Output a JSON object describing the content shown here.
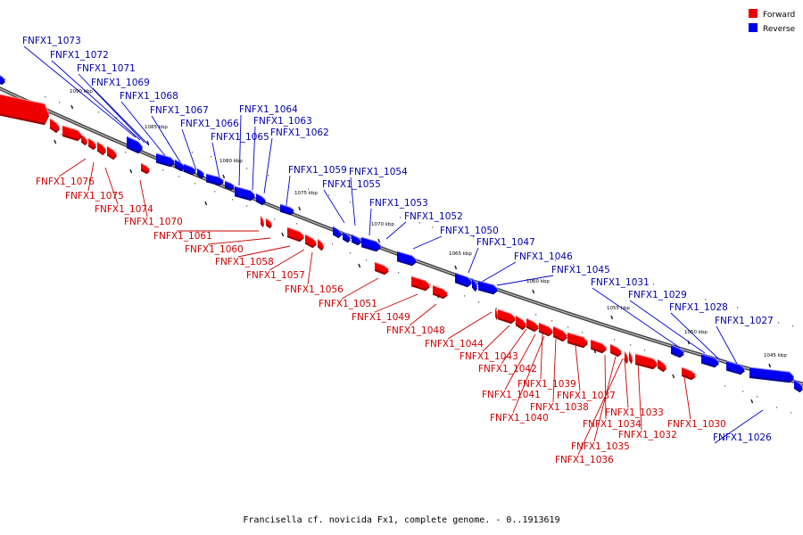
{
  "caption": "Francisella cf. novicida Fx1, complete genome. - 0..1913619",
  "legend": [
    {
      "label": "Forward",
      "color": "#ee0000"
    },
    {
      "label": "Reverse",
      "color": "#0000ee"
    }
  ],
  "kbp_labels": [
    "1090 kbp",
    "1085 kbp",
    "1080 kbp",
    "1075 kbp",
    "1070 kbp",
    "1065 kbp",
    "1060 kbp",
    "1055 kbp",
    "1050 kbp",
    "1045 kbp"
  ],
  "reverse_genes": [
    "FNFX1_1073",
    "FNFX1_1072",
    "FNFX1_1071",
    "FNFX1_1069",
    "FNFX1_1068",
    "FNFX1_1067",
    "FNFX1_1066",
    "FNFX1_1065",
    "FNFX1_1064",
    "FNFX1_1063",
    "FNFX1_1062",
    "FNFX1_1059",
    "FNFX1_1055",
    "FNFX1_1054",
    "FNFX1_1053",
    "FNFX1_1052",
    "FNFX1_1050",
    "FNFX1_1047",
    "FNFX1_1046",
    "FNFX1_1045",
    "FNFX1_1031",
    "FNFX1_1029",
    "FNFX1_1028",
    "FNFX1_1027",
    "FNFX1_1026"
  ],
  "forward_genes": [
    "FNFX1_1076",
    "FNFX1_1075",
    "FNFX1_1074",
    "FNFX1_1070",
    "FNFX1_1061",
    "FNFX1_1060",
    "FNFX1_1058",
    "FNFX1_1057",
    "FNFX1_1056",
    "FNFX1_1051",
    "FNFX1_1049",
    "FNFX1_1048",
    "FNFX1_1044",
    "FNFX1_1043",
    "FNFX1_1042",
    "FNFX1_1039",
    "FNFX1_1041",
    "FNFX1_1038",
    "FNFX1_1040",
    "FNFX1_1037",
    "FNFX1_1034",
    "FNFX1_1033",
    "FNFX1_1035",
    "FNFX1_1032",
    "FNFX1_1036",
    "FNFX1_1030"
  ]
}
